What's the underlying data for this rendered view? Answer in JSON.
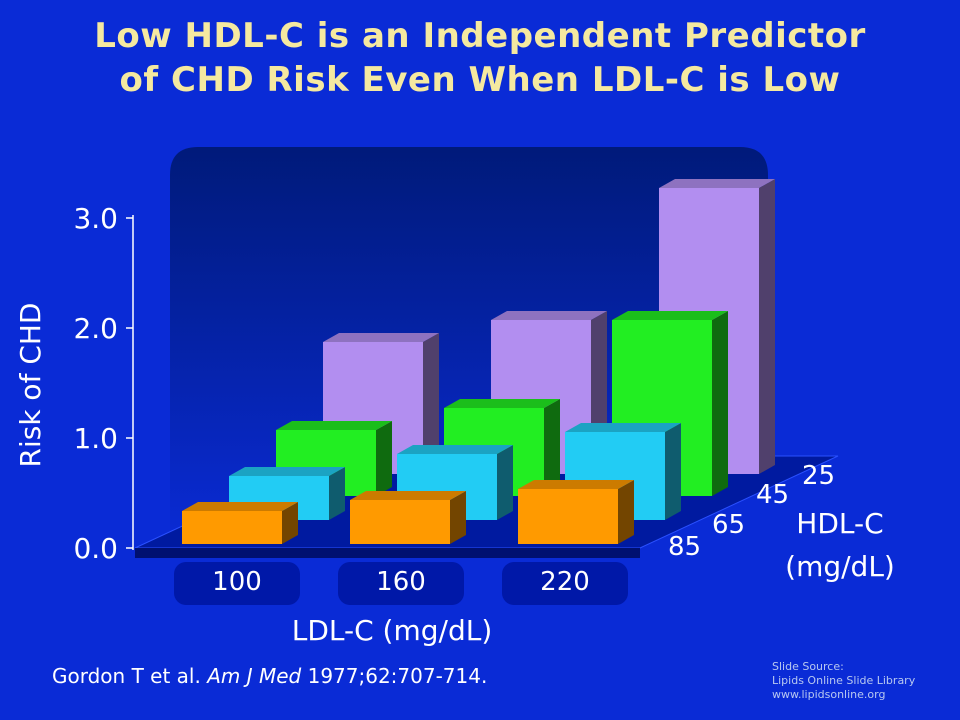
{
  "title_line1": "Low HDL-C is an Independent Predictor",
  "title_line2": "of CHD Risk Even When LDL-C is Low",
  "citation": {
    "authors": "Gordon T et al.",
    "journal": "Am J Med",
    "ref": "1977;62:707-714."
  },
  "source": {
    "line1": "Slide Source:",
    "line2": "Lipids Online Slide Library",
    "line3": "www.lipidsonline.org"
  },
  "colors": {
    "background": "#0a2bd6",
    "hdl_25": "#b28ef0",
    "hdl_45": "#22ee22",
    "hdl_65": "#22ccf4",
    "hdl_85": "#ff9a00"
  },
  "chart_data": {
    "type": "bar",
    "xlabel": "LDL-C (mg/dL)",
    "ylabel": "Risk of CHD",
    "zlabel_line1": "HDL-C",
    "zlabel_line2": "(mg/dL)",
    "categories": [
      "100",
      "160",
      "220"
    ],
    "yticks": [
      "0.0",
      "1.0",
      "2.0",
      "3.0"
    ],
    "ylim": [
      0,
      3.0
    ],
    "series": [
      {
        "name": "85",
        "color": "#ff9a00",
        "values": [
          0.3,
          0.4,
          0.5
        ]
      },
      {
        "name": "65",
        "color": "#22ccf4",
        "values": [
          0.4,
          0.6,
          0.8
        ]
      },
      {
        "name": "45",
        "color": "#22ee22",
        "values": [
          0.6,
          0.8,
          1.6
        ]
      },
      {
        "name": "25",
        "color": "#b28ef0",
        "values": [
          1.2,
          1.4,
          2.6
        ]
      }
    ]
  }
}
